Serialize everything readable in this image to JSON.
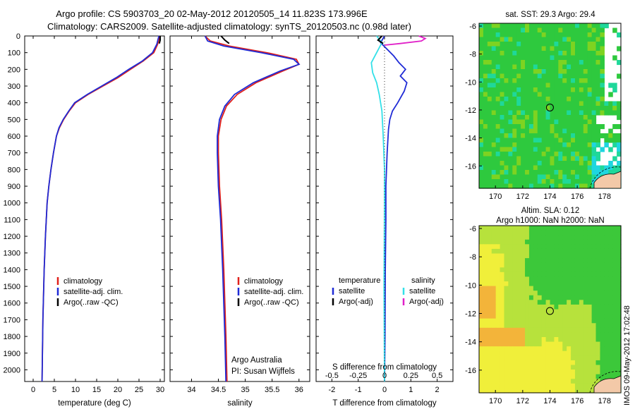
{
  "header": {
    "title_line1": "Argo profile: CS 5903703_20 02-May-2012 20120505_14 11.823S 173.996E",
    "title_line2": "Climatology: CARS2009. Satellite-adjusted climatology: synTS_20120503.nc (0.98d later)"
  },
  "side_stamp": "IMOS 09-May-2012 17:02:48",
  "credit": {
    "line1": "Argo Australia",
    "line2": "PI: Susan Wijffels"
  },
  "chart_data": [
    {
      "type": "line",
      "id": "temperature",
      "xlabel": "temperature (deg C)",
      "ylabel": "",
      "xlim": [
        -2,
        31
      ],
      "ylim": [
        2070,
        0
      ],
      "y_inverted": true,
      "xticks": [
        "0",
        "5",
        "10",
        "15",
        "20",
        "25",
        "30"
      ],
      "yticks": [
        "0",
        "100",
        "200",
        "300",
        "400",
        "500",
        "600",
        "700",
        "800",
        "900",
        "1000",
        "1100",
        "1200",
        "1300",
        "1400",
        "1500",
        "1600",
        "1700",
        "1800",
        "1900",
        "2000"
      ],
      "legend": [
        "climatology",
        "satellite-adj. clim.",
        "Argo(..raw -QC)"
      ],
      "legend_colors": [
        "#e0201b",
        "#1f2bd6",
        "#000000"
      ],
      "series": [
        {
          "name": "climatology",
          "color": "#e0201b",
          "x": [
            29.9,
            29.4,
            28.5,
            26.0,
            23.0,
            20.0,
            16.5,
            13.0,
            10.0,
            8.5,
            7.2,
            6.2,
            5.5,
            4.8,
            4.2,
            3.7,
            3.3,
            2.9,
            2.6,
            2.3,
            2.1
          ],
          "y": [
            0,
            50,
            100,
            150,
            200,
            250,
            300,
            350,
            400,
            450,
            500,
            550,
            600,
            700,
            800,
            900,
            1000,
            1200,
            1400,
            1700,
            2070
          ]
        },
        {
          "name": "satellite-adj. clim.",
          "color": "#1f2bd6",
          "x": [
            29.7,
            29.2,
            28.2,
            25.8,
            22.6,
            19.6,
            16.2,
            12.8,
            9.8,
            8.4,
            7.1,
            6.1,
            5.5,
            4.8,
            4.2,
            3.7,
            3.3,
            2.9,
            2.6,
            2.3,
            2.1
          ],
          "y": [
            0,
            50,
            100,
            150,
            200,
            250,
            300,
            350,
            400,
            450,
            500,
            550,
            600,
            700,
            800,
            900,
            1000,
            1200,
            1400,
            1700,
            2070
          ]
        },
        {
          "name": "Argo(..raw -QC)",
          "color": "#000000",
          "x": [
            30.0,
            30.0,
            29.8
          ],
          "y": [
            0,
            25,
            45
          ]
        }
      ]
    },
    {
      "type": "line",
      "id": "salinity",
      "xlabel": "salinity",
      "ylabel": "",
      "xlim": [
        33.6,
        36.2
      ],
      "ylim": [
        2070,
        0
      ],
      "y_inverted": true,
      "xticks": [
        "34",
        "34.5",
        "35",
        "35.5",
        "36"
      ],
      "legend": [
        "climatology",
        "satellite-adj. clim.",
        "Argo(..raw -QC)"
      ],
      "legend_colors": [
        "#e0201b",
        "#1f2bd6",
        "#000000"
      ],
      "series": [
        {
          "name": "climatology",
          "color": "#e0201b",
          "x": [
            34.25,
            34.35,
            34.7,
            35.4,
            35.95,
            36.0,
            35.7,
            35.2,
            34.85,
            34.65,
            34.55,
            34.5,
            34.5,
            34.52,
            34.56,
            34.6,
            34.64,
            34.66
          ],
          "y": [
            0,
            30,
            60,
            100,
            140,
            170,
            210,
            280,
            350,
            420,
            500,
            600,
            700,
            900,
            1100,
            1400,
            1800,
            2070
          ]
        },
        {
          "name": "satellite-adj. clim.",
          "color": "#1f2bd6",
          "x": [
            34.25,
            34.3,
            34.6,
            35.3,
            35.9,
            36.0,
            35.65,
            35.15,
            34.8,
            34.62,
            34.52,
            34.48,
            34.48,
            34.5,
            34.54,
            34.58,
            34.62,
            34.64
          ],
          "y": [
            0,
            30,
            60,
            100,
            140,
            170,
            210,
            280,
            350,
            420,
            500,
            600,
            700,
            900,
            1100,
            1400,
            1800,
            2070
          ]
        },
        {
          "name": "Argo(..raw -QC)",
          "color": "#000000",
          "x": [
            34.55,
            34.62,
            34.7
          ],
          "y": [
            0,
            25,
            45
          ]
        }
      ]
    },
    {
      "type": "line",
      "id": "differences",
      "xlabel": "T difference from climatology",
      "xlabel_top": "S difference from climatology",
      "ylabel": "",
      "xlim": [
        -2.6,
        2.6
      ],
      "ylim": [
        2070,
        0
      ],
      "y_inverted": true,
      "xticks": [
        "-2",
        "-1",
        "0",
        "1",
        "2"
      ],
      "xticks_top": [
        "-0.5",
        "-0.25",
        "0",
        "0.25",
        "0.5"
      ],
      "legend_heading_temperature": "temperature",
      "legend_heading_salinity": "salinity",
      "legend": [
        "satellite",
        "Argo(-adj)",
        "satellite",
        "Argo(-adj)"
      ],
      "legend_colors": [
        "#1f2bd6",
        "#000000",
        "#33e0e8",
        "#e020c8"
      ],
      "series": [
        {
          "name": "satellite",
          "color": "#1f2bd6",
          "x": [
            0.0,
            -0.15,
            0.1,
            0.35,
            0.55,
            0.8,
            0.6,
            0.85,
            0.75,
            0.5,
            0.3,
            0.2,
            0.15,
            0.1,
            0.05,
            0.05,
            0.03,
            0.02,
            0.0
          ],
          "y": [
            0,
            40,
            80,
            120,
            160,
            200,
            240,
            280,
            330,
            400,
            450,
            500,
            560,
            700,
            900,
            1100,
            1400,
            1800,
            2070
          ]
        },
        {
          "name": "satellite",
          "color": "#33e0e8",
          "x": [
            -0.3,
            -0.1,
            -0.3,
            -0.5,
            -0.45,
            -0.3,
            -0.2,
            -0.1,
            -0.05,
            0.0,
            0.0,
            -0.02,
            0.0
          ],
          "y": [
            0,
            40,
            100,
            160,
            220,
            280,
            350,
            450,
            600,
            800,
            1000,
            1500,
            2070
          ]
        },
        {
          "name": "Argo(-adj)",
          "color": "#e020c8",
          "x": [
            1.3,
            1.55,
            1.4,
            0.6,
            0.0
          ],
          "y": [
            0,
            15,
            30,
            45,
            55
          ]
        },
        {
          "name": "Argo(-adj)",
          "color": "#000000",
          "x": [
            -0.1,
            -0.25,
            -0.05
          ],
          "y": [
            0,
            25,
            45
          ]
        }
      ]
    },
    {
      "type": "heatmap",
      "id": "sst_map",
      "title": "sat. SST: 29.3 Argo: 29.4",
      "xlim": [
        168.8,
        179.2
      ],
      "ylim": [
        -17.6,
        -5.8
      ],
      "xticks": [
        "170",
        "172",
        "174",
        "176",
        "178"
      ],
      "yticks": [
        "-6",
        "-8",
        "-10",
        "-12",
        "-14",
        "-16"
      ],
      "marker": {
        "lon": 173.996,
        "lat": -11.823
      },
      "colors": {
        "main": "#2ec93e",
        "warm": "#7ed321",
        "cool": "#1fd89a",
        "cyan": "#1ed6e0",
        "missing": "#ffffff"
      }
    },
    {
      "type": "heatmap",
      "id": "sla_map",
      "title_line1": "Altim. SLA: 0.12",
      "title_line2": "Argo h1000: NaN h2000: NaN",
      "xlim": [
        168.8,
        179.2
      ],
      "ylim": [
        -17.6,
        -5.8
      ],
      "xticks": [
        "170",
        "172",
        "174",
        "176",
        "178"
      ],
      "yticks": [
        "-6",
        "-8",
        "-10",
        "-12",
        "-14",
        "-16"
      ],
      "marker": {
        "lon": 173.996,
        "lat": -11.823
      },
      "colors": {
        "green": "#3cc83a",
        "yellowgreen": "#b7e23c",
        "yellow": "#f0ef3a",
        "orange": "#f3b43a"
      }
    }
  ]
}
